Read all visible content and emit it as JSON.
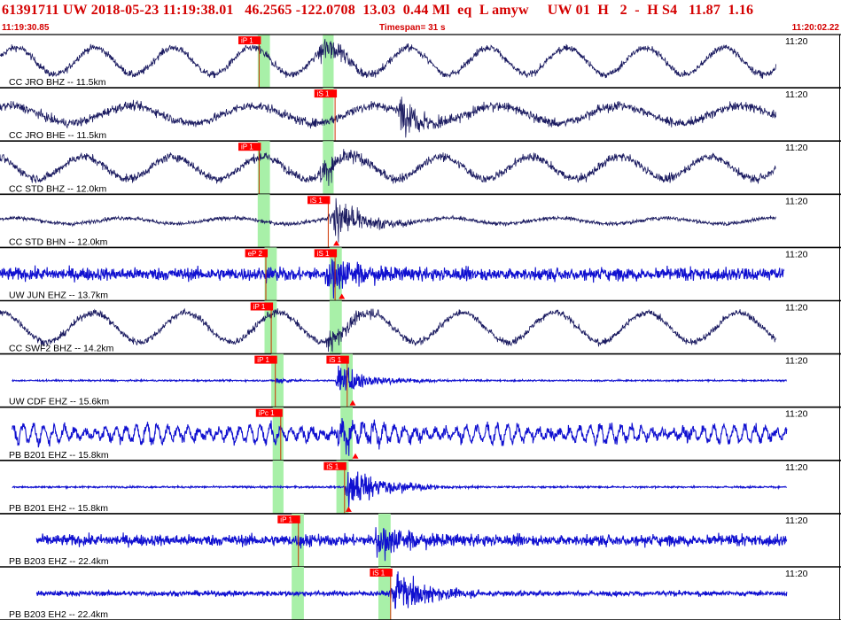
{
  "header": {
    "title": "61391711 UW 2018-05-23 11:19:38.01   46.2565 -122.0708  13.03  0.44 Ml  eq  L amyw     UW 01  H   2  -  H S4   11.87  1.16",
    "start_time": "11:19:30.85",
    "timespan": "Timespan=  31 s",
    "end_time": "11:20:02.22"
  },
  "colors": {
    "header_text": "#d40000",
    "pick_flag": "#ff0000",
    "pick_window": "#a8f0a8",
    "trace_dark": "#1a1a60",
    "trace_blue": "#1010d0",
    "separator": "#000000"
  },
  "chart_data": {
    "type": "line",
    "title": "61391711 UW 2018-05-23 11:19:38.01   46.2565 -122.0708  13.03  0.44 Ml  eq  L amyw     UW 01  H   2  -  H S4   11.87  1.16",
    "x_axis": {
      "unit": "s",
      "start": "11:19:30.85",
      "end": "11:20:02.22",
      "span_s": 31
    },
    "traces": [
      {
        "label": "CC JRO BHZ -- 11.5km",
        "time_label": "11:20",
        "color": "dark",
        "kind": "longperiod",
        "data_start_s": 0,
        "data_end_s": 28.6,
        "noise": 0.14,
        "lp_amp": 0.55,
        "lp_period": 2.9,
        "lp_phase": 0.3,
        "burst_amp": 0.55,
        "picks": [
          {
            "label": "iP 1",
            "time_s": 9.55
          }
        ],
        "windows_s": [
          [
            9.5,
            9.95
          ],
          [
            11.9,
            12.3
          ]
        ],
        "marker_times_s": []
      },
      {
        "label": "CC JRO BHE -- 11.5km",
        "time_label": "11:20",
        "color": "dark",
        "kind": "longperiod",
        "data_start_s": 0,
        "data_end_s": 28.6,
        "noise": 0.18,
        "lp_amp": 0.35,
        "lp_period": 4.5,
        "lp_phase": 1.1,
        "burst_amp": 0.75,
        "picks": [
          {
            "label": "iS 1",
            "time_s": 12.35
          }
        ],
        "windows_s": [
          [
            11.9,
            12.3
          ]
        ],
        "marker_times_s": []
      },
      {
        "label": "CC STD BHZ -- 12.0km",
        "time_label": "11:20",
        "color": "dark",
        "kind": "longperiod",
        "data_start_s": 0,
        "data_end_s": 28.6,
        "noise": 0.17,
        "lp_amp": 0.45,
        "lp_period": 3.3,
        "lp_phase": 2.0,
        "burst_amp": 0.55,
        "picks": [
          {
            "label": "iP 1",
            "time_s": 9.55
          }
        ],
        "windows_s": [
          [
            9.5,
            9.95
          ],
          [
            11.9,
            12.3
          ]
        ],
        "marker_times_s": []
      },
      {
        "label": "CC STD BHN -- 12.0km",
        "time_label": "11:20",
        "color": "dark",
        "kind": "longperiod",
        "data_start_s": 0,
        "data_end_s": 28.6,
        "noise": 0.08,
        "lp_amp": 0.12,
        "lp_period": 4.0,
        "lp_phase": 0.7,
        "burst_amp": 0.75,
        "picks": [
          {
            "label": "iS 1",
            "time_s": 12.1
          }
        ],
        "windows_s": [
          [
            9.5,
            9.95
          ]
        ],
        "marker_times_s": [
          12.4
        ]
      },
      {
        "label": "UW JUN EHZ -- 13.7km",
        "time_label": "11:20",
        "color": "blue",
        "kind": "noise",
        "data_start_s": 0,
        "data_end_s": 28.9,
        "noise": 0.25,
        "lp_amp": 0,
        "lp_period": 1,
        "lp_phase": 0,
        "burst_amp": 0.85,
        "picks": [
          {
            "label": "eP 2",
            "time_s": 9.8
          },
          {
            "label": "iS 1",
            "time_s": 12.35
          }
        ],
        "windows_s": [
          [
            9.75,
            10.2
          ],
          [
            12.15,
            12.6
          ]
        ],
        "marker_times_s": [
          12.6
        ]
      },
      {
        "label": "CC SWF2 BHZ -- 14.2km",
        "time_label": "11:20",
        "color": "dark",
        "kind": "longperiod",
        "data_start_s": 0,
        "data_end_s": 28.6,
        "noise": 0.14,
        "lp_amp": 0.6,
        "lp_period": 3.4,
        "lp_phase": 1.5,
        "burst_amp": 0.45,
        "picks": [
          {
            "label": "iP 1",
            "time_s": 10.0
          }
        ],
        "windows_s": [
          [
            9.75,
            10.2
          ],
          [
            12.15,
            12.6
          ]
        ],
        "marker_times_s": []
      },
      {
        "label": "UW CDF EHZ -- 15.6km",
        "time_label": "11:20",
        "color": "blue",
        "kind": "quiet",
        "data_start_s": 0.45,
        "data_end_s": 29.0,
        "noise": 0.03,
        "lp_amp": 0,
        "lp_period": 1,
        "lp_phase": 0,
        "burst_amp": 0.55,
        "picks": [
          {
            "label": "iP 1",
            "time_s": 10.15
          },
          {
            "label": "iS 1",
            "time_s": 12.8
          }
        ],
        "windows_s": [
          [
            10.0,
            10.45
          ],
          [
            12.55,
            13.0
          ]
        ],
        "marker_times_s": [
          13.0
        ]
      },
      {
        "label": "PB B201 EHZ -- 15.8km",
        "time_label": "11:20",
        "color": "blue",
        "kind": "oscillating",
        "data_start_s": 0.45,
        "data_end_s": 29.0,
        "noise": 0.2,
        "lp_amp": 0.35,
        "lp_period": 0.38,
        "lp_phase": 0,
        "burst_amp": 0.55,
        "picks": [
          {
            "label": "iPc 1",
            "time_s": 10.35
          }
        ],
        "windows_s": [
          [
            10.05,
            10.45
          ],
          [
            12.55,
            13.0
          ]
        ],
        "marker_times_s": [
          13.1
        ]
      },
      {
        "label": "PB B201 EH2 -- 15.8km",
        "time_label": "11:20",
        "color": "blue",
        "kind": "quiet",
        "data_start_s": 0.45,
        "data_end_s": 29.0,
        "noise": 0.035,
        "lp_amp": 0,
        "lp_period": 1,
        "lp_phase": 0,
        "burst_amp": 0.85,
        "picks": [
          {
            "label": "iS 1",
            "time_s": 12.7
          }
        ],
        "windows_s": [
          [
            10.05,
            10.45
          ],
          [
            12.4,
            12.85
          ]
        ],
        "marker_times_s": [
          12.85
        ]
      },
      {
        "label": "PB B203 EHZ -- 22.4km",
        "time_label": "11:20",
        "color": "blue",
        "kind": "noise",
        "data_start_s": 1.35,
        "data_end_s": 29.0,
        "noise": 0.22,
        "lp_amp": 0,
        "lp_period": 1,
        "lp_phase": 0,
        "burst_amp": 0.75,
        "picks": [
          {
            "label": "iP 1",
            "time_s": 11.0
          }
        ],
        "windows_s": [
          [
            10.75,
            11.2
          ],
          [
            13.95,
            14.4
          ]
        ],
        "marker_times_s": []
      },
      {
        "label": "PB B203 EH2 -- 22.4km",
        "time_label": "11:20",
        "color": "blue",
        "kind": "noise",
        "data_start_s": 1.35,
        "data_end_s": 29.0,
        "noise": 0.1,
        "lp_amp": 0,
        "lp_period": 1,
        "lp_phase": 0,
        "burst_amp": 0.85,
        "picks": [
          {
            "label": "iS 1",
            "time_s": 14.4
          }
        ],
        "windows_s": [
          [
            10.75,
            11.2
          ],
          [
            13.95,
            14.4
          ]
        ],
        "marker_times_s": []
      }
    ]
  }
}
